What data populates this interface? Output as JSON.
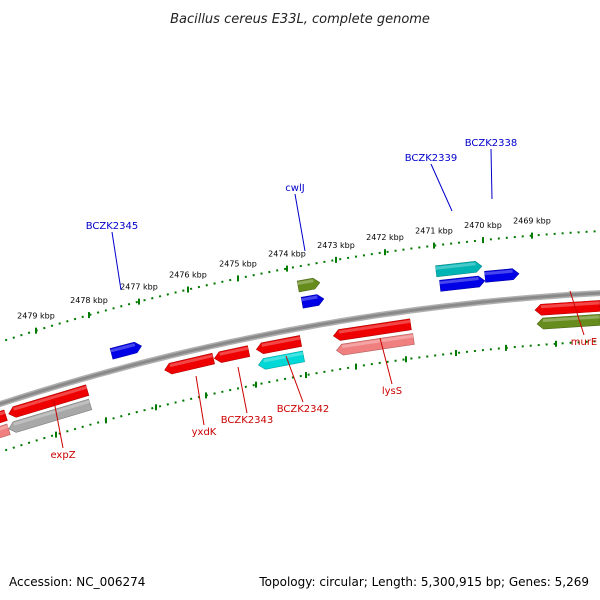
{
  "title": "Bacillus cereus E33L, complete genome",
  "footer": {
    "accession": "Accession: NC_006274",
    "topology": "Topology: circular; Length: 5,300,915 bp; Genes: 5,269"
  },
  "colors": {
    "backbone": "#8a8a8a",
    "tick": "#007a00",
    "label_forward": "#0000cc",
    "label_reverse": "#cc0000",
    "gene_red": "#ee0000",
    "gene_pink": "#f08080",
    "gene_gray": "#a8a8a8",
    "gene_blue": "#0000e6",
    "gene_cyan": "#00d8d8",
    "gene_teal": "#00b4b4",
    "gene_olive": "#668c1e"
  },
  "scale": {
    "kbp_labels": [
      "2479 kbp",
      "2478 kbp",
      "2477 kbp",
      "2476 kbp",
      "2475 kbp",
      "2474 kbp",
      "2473 kbp",
      "2472 kbp",
      "2471 kbp",
      "2470 kbp",
      "2469 kbp"
    ]
  },
  "genes": {
    "forward": [
      {
        "name": "BCZK2345",
        "color": "gene_blue"
      },
      {
        "name": "cwlJ",
        "color": "gene_olive"
      },
      {
        "name": "",
        "color": "gene_blue"
      },
      {
        "name": "BCZK2339",
        "color": "gene_teal"
      },
      {
        "name": "",
        "color": "gene_blue"
      },
      {
        "name": "BCZK2338",
        "color": "gene_blue"
      }
    ],
    "reverse": [
      {
        "name": "expZ",
        "color": "gene_red"
      },
      {
        "name": "",
        "color": "gene_gray"
      },
      {
        "name": "yxdK",
        "color": "gene_red"
      },
      {
        "name": "BCZK2343",
        "color": "gene_red"
      },
      {
        "name": "BCZK2342",
        "color": "gene_red"
      },
      {
        "name": "",
        "color": "gene_cyan"
      },
      {
        "name": "lysS",
        "color": "gene_red"
      },
      {
        "name": "",
        "color": "gene_pink"
      },
      {
        "name": "murE",
        "color": "gene_red"
      },
      {
        "name": "",
        "color": "gene_olive"
      }
    ]
  }
}
